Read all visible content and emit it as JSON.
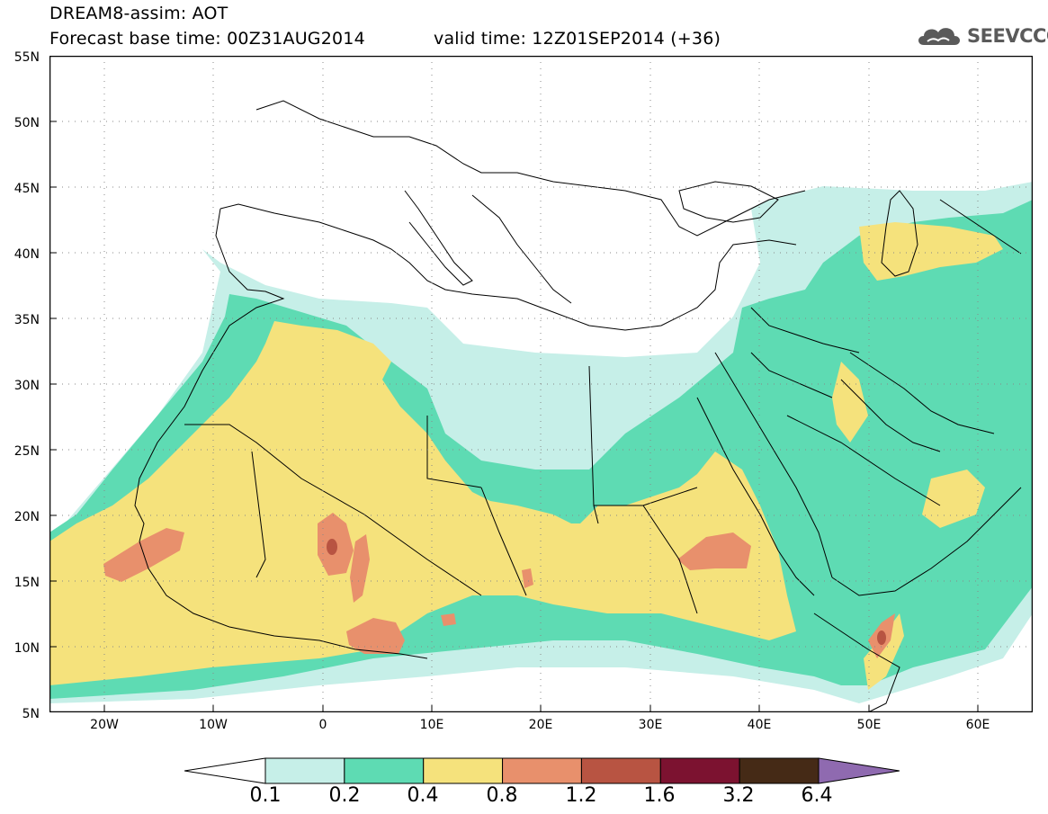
{
  "header": {
    "title_line1": "DREAM8-assim: AOT",
    "title_line2": "Forecast base time: 00Z31AUG2014",
    "valid_time": "valid time: 12Z01SEP2014 (+36)"
  },
  "logo": {
    "text": "SEEVCCC",
    "icon": "cloud-icon"
  },
  "map": {
    "lon_range": [
      -25,
      65
    ],
    "lat_range": [
      5,
      55
    ],
    "grid": true,
    "lat_labels": [
      "55N",
      "50N",
      "45N",
      "40N",
      "35N",
      "30N",
      "25N",
      "20N",
      "15N",
      "10N",
      "5N"
    ],
    "lon_labels": [
      "20W",
      "10W",
      "0",
      "10E",
      "20E",
      "30E",
      "40E",
      "50E",
      "60E"
    ]
  },
  "colorbar": {
    "levels": [
      "0.1",
      "0.2",
      "0.4",
      "0.8",
      "1.2",
      "1.6",
      "3.2",
      "6.4"
    ],
    "colors": [
      "#c6efe8",
      "#5edbb3",
      "#f5e27c",
      "#e8906c",
      "#b85442",
      "#7c1230",
      "#452a16",
      "#8f6ab0"
    ]
  }
}
